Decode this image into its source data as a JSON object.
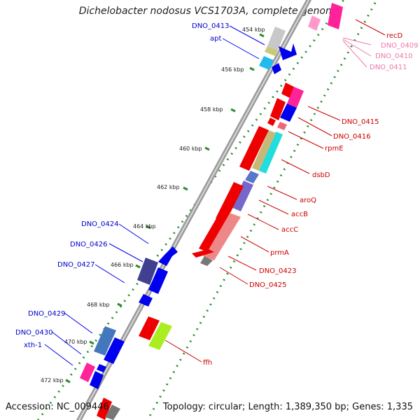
{
  "title": "Dichelobacter nodosus VCS1703A, complete genome",
  "accession": "Accession: NC_009446",
  "topology": "Topology: circular; Length: 1,389,350 bp; Genes: 1,335",
  "colors": {
    "backbone": "#8a8a8a",
    "ruler_dots": "#2e8b2e",
    "forward_label": "#0000cc",
    "reverse_label": "#cc0000",
    "faded_label": "#ee77aa"
  },
  "ruler_ticks": [
    "454 kbp",
    "456 kbp",
    "458 kbp",
    "460 kbp",
    "462 kbp",
    "464 kbp",
    "466 kbp",
    "468 kbp",
    "470 kbp",
    "472 kbp"
  ],
  "left_labels": [
    {
      "text": "DNO_0413"
    },
    {
      "text": "apt"
    },
    {
      "text": "DNO_0424"
    },
    {
      "text": "DNO_0426"
    },
    {
      "text": "DNO_0427"
    },
    {
      "text": "DNO_0429"
    },
    {
      "text": "DNO_0430"
    },
    {
      "text": "xth-1"
    }
  ],
  "right_labels": [
    {
      "text": "recD"
    },
    {
      "text": "DNO_0409"
    },
    {
      "text": "DNO_0410"
    },
    {
      "text": "DNO_0411"
    },
    {
      "text": "DNO_0415"
    },
    {
      "text": "DNO_0416"
    },
    {
      "text": "rpmE"
    },
    {
      "text": "dsbD"
    },
    {
      "text": "aroQ"
    },
    {
      "text": "accB"
    },
    {
      "text": "accC"
    },
    {
      "text": "prmA"
    },
    {
      "text": "DNO_0423"
    },
    {
      "text": "DNO_0425"
    },
    {
      "text": "ffh"
    }
  ]
}
